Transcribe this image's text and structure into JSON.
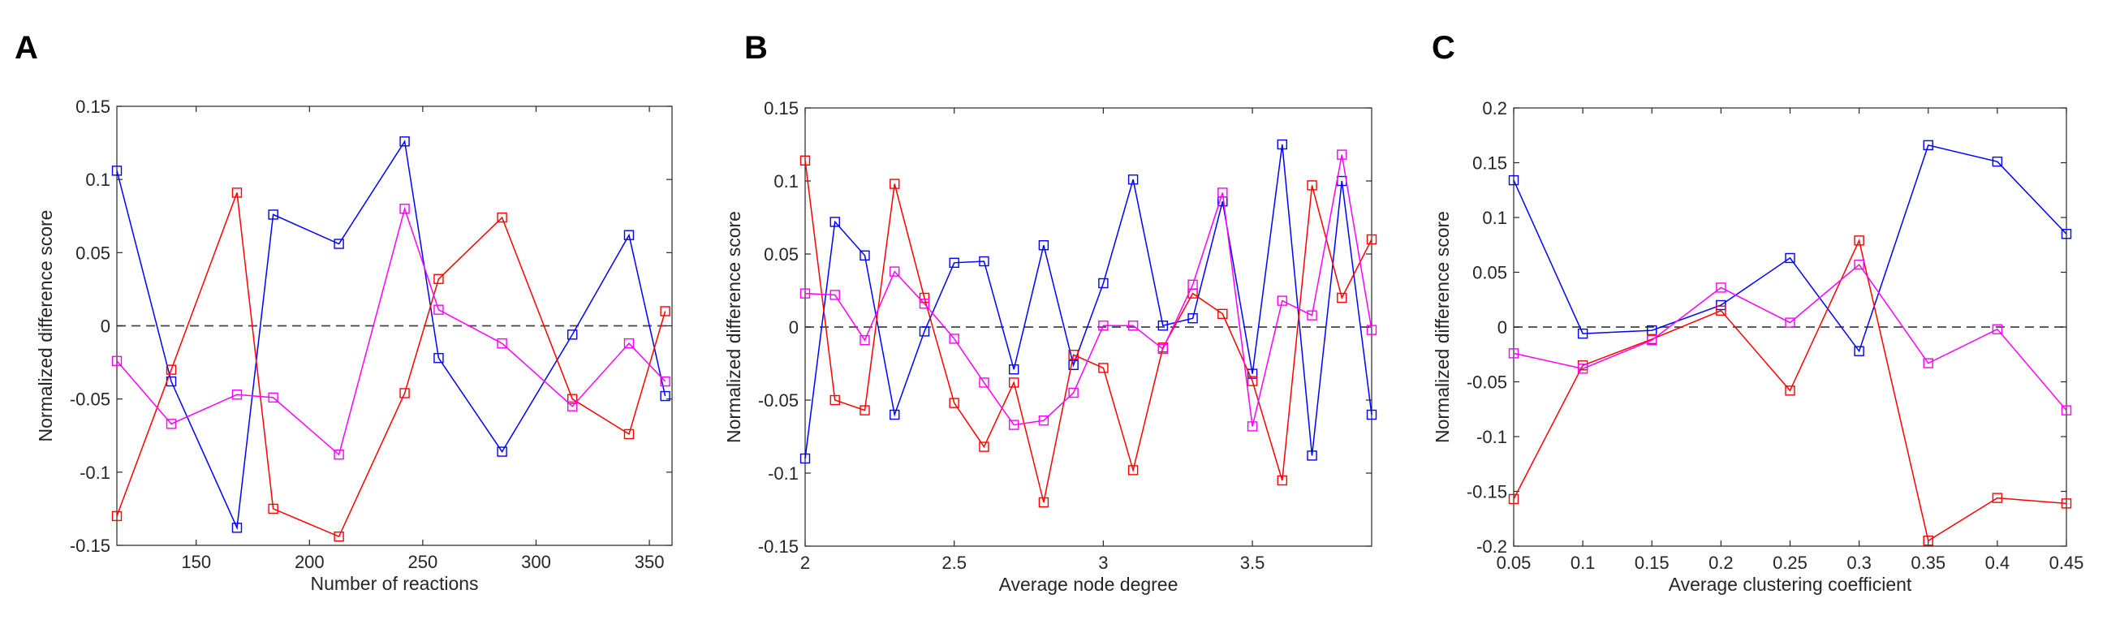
{
  "figure": {
    "panel_labels": [
      "A",
      "B",
      "C"
    ]
  },
  "chart_data": [
    {
      "type": "line",
      "panel": "A",
      "xlabel": "Number of reactions",
      "ylabel": "Normalized difference score",
      "xlim": [
        115,
        360
      ],
      "ylim": [
        -0.15,
        0.15
      ],
      "xticks": [
        150,
        200,
        250,
        300,
        350
      ],
      "yticks": [
        -0.15,
        -0.1,
        -0.05,
        0,
        0.05,
        0.1,
        0.15
      ],
      "xtick_labels": [
        "150",
        "200",
        "250",
        "300",
        "350"
      ],
      "ytick_labels": [
        "-0.15",
        "-0.1",
        "-0.05",
        "0",
        "0.05",
        "0.1",
        "0.15"
      ],
      "reference_line": 0,
      "x": [
        115,
        139,
        168,
        184,
        213,
        242,
        257,
        285,
        316,
        341,
        357
      ],
      "series": [
        {
          "color": "#0000ff",
          "values": [
            0.106,
            -0.038,
            -0.138,
            0.076,
            0.056,
            0.126,
            -0.022,
            -0.086,
            -0.006,
            0.062,
            -0.048
          ]
        },
        {
          "color": "#ff0000",
          "values": [
            -0.13,
            -0.03,
            0.091,
            -0.125,
            -0.144,
            -0.046,
            0.032,
            0.074,
            -0.05,
            -0.074,
            0.01
          ]
        },
        {
          "color": "#ff00ff",
          "values": [
            -0.024,
            -0.067,
            -0.047,
            -0.049,
            -0.088,
            0.08,
            0.011,
            -0.012,
            -0.055,
            -0.012,
            -0.038
          ]
        }
      ]
    },
    {
      "type": "line",
      "panel": "B",
      "xlabel": "Average node degree",
      "ylabel": "Normalized difference score",
      "xlim": [
        2,
        3.9
      ],
      "ylim": [
        -0.15,
        0.15
      ],
      "xticks": [
        2,
        2.5,
        3,
        3.5
      ],
      "yticks": [
        -0.15,
        -0.1,
        -0.05,
        0,
        0.05,
        0.1,
        0.15
      ],
      "xtick_labels": [
        "2",
        "2.5",
        "3",
        "3.5"
      ],
      "ytick_labels": [
        "-0.15",
        "-0.1",
        "-0.05",
        "0",
        "0.05",
        "0.1",
        "0.15"
      ],
      "reference_line": 0,
      "x": [
        2.0,
        2.1,
        2.2,
        2.3,
        2.4,
        2.5,
        2.6,
        2.7,
        2.8,
        2.9,
        3.0,
        3.1,
        3.2,
        3.3,
        3.4,
        3.5,
        3.6,
        3.7,
        3.8,
        3.9
      ],
      "series": [
        {
          "color": "#0000ff",
          "values": [
            -0.09,
            0.072,
            0.049,
            -0.06,
            -0.003,
            0.044,
            0.045,
            -0.029,
            0.056,
            -0.026,
            0.03,
            0.101,
            0.001,
            0.006,
            0.086,
            -0.032,
            0.125,
            -0.088,
            0.1,
            -0.06
          ]
        },
        {
          "color": "#ff0000",
          "values": [
            0.114,
            -0.05,
            -0.057,
            0.098,
            0.02,
            -0.052,
            -0.082,
            -0.038,
            -0.12,
            -0.019,
            -0.028,
            -0.098,
            -0.014,
            0.023,
            0.009,
            -0.037,
            -0.105,
            0.097,
            0.02,
            0.06
          ]
        },
        {
          "color": "#ff00ff",
          "values": [
            0.023,
            0.022,
            -0.009,
            0.038,
            0.016,
            -0.008,
            -0.038,
            -0.067,
            -0.064,
            -0.045,
            0.001,
            0.001,
            -0.015,
            0.029,
            0.092,
            -0.068,
            0.018,
            0.008,
            0.118,
            -0.002
          ]
        }
      ]
    },
    {
      "type": "line",
      "panel": "C",
      "xlabel": "Average clustering coefficient",
      "ylabel": "Normalized difference score",
      "xlim": [
        0.05,
        0.45
      ],
      "ylim": [
        -0.2,
        0.2
      ],
      "xticks": [
        0.05,
        0.1,
        0.15,
        0.2,
        0.25,
        0.3,
        0.35,
        0.4,
        0.45
      ],
      "yticks": [
        -0.2,
        -0.15,
        -0.1,
        -0.05,
        0,
        0.05,
        0.1,
        0.15,
        0.2
      ],
      "xtick_labels": [
        "0.05",
        "0.1",
        "0.15",
        "0.2",
        "0.25",
        "0.3",
        "0.35",
        "0.4",
        "0.45"
      ],
      "ytick_labels": [
        "-0.2",
        "-0.15",
        "-0.1",
        "-0.05",
        "0",
        "0.05",
        "0.1",
        "0.15",
        "0.2"
      ],
      "reference_line": 0,
      "x": [
        0.05,
        0.1,
        0.15,
        0.2,
        0.25,
        0.3,
        0.35,
        0.4,
        0.45
      ],
      "series": [
        {
          "color": "#0000ff",
          "values": [
            0.134,
            -0.006,
            -0.003,
            0.02,
            0.063,
            -0.022,
            0.166,
            0.151,
            0.085
          ]
        },
        {
          "color": "#ff0000",
          "values": [
            -0.157,
            -0.035,
            -0.011,
            0.015,
            -0.058,
            0.079,
            -0.195,
            -0.156,
            -0.161
          ]
        },
        {
          "color": "#ff00ff",
          "values": [
            -0.024,
            -0.038,
            -0.012,
            0.036,
            0.004,
            0.057,
            -0.033,
            -0.002,
            -0.076
          ]
        }
      ]
    }
  ]
}
